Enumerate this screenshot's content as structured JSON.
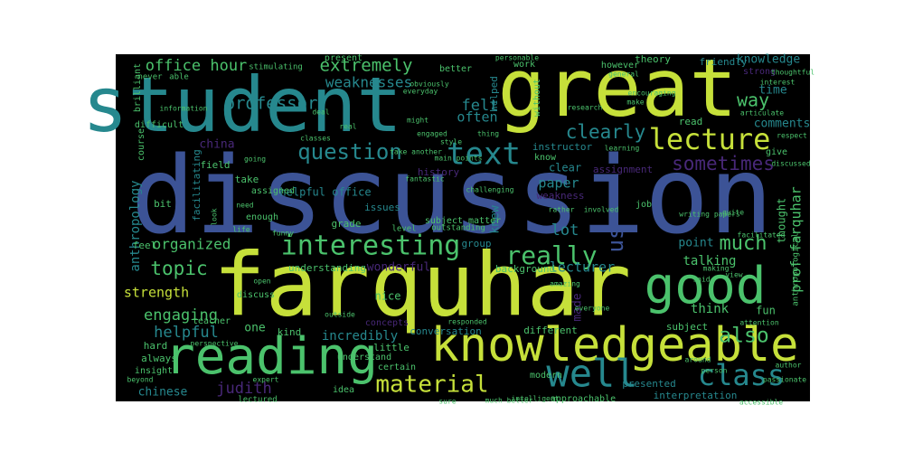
{
  "colors": {
    "background": "#000000",
    "yellow_green": "#c6e03a",
    "green": "#4bc26c",
    "teal": "#26888e",
    "blue": "#3c5396",
    "purple": "#482878",
    "dark_purple": "#3b1f62"
  },
  "words": [
    {
      "text": "discussion",
      "color": "blue"
    },
    {
      "text": "farquhar",
      "color": "yellow_green"
    },
    {
      "text": "student",
      "color": "teal"
    },
    {
      "text": "great",
      "color": "yellow_green"
    },
    {
      "text": "knowledgeable",
      "color": "yellow_green"
    },
    {
      "text": "good",
      "color": "green"
    },
    {
      "text": "reading",
      "color": "green"
    },
    {
      "text": "interesting",
      "color": "green"
    },
    {
      "text": "lecture",
      "color": "yellow_green"
    },
    {
      "text": "text",
      "color": "teal"
    },
    {
      "text": "question",
      "color": "teal"
    },
    {
      "text": "well",
      "color": "teal"
    },
    {
      "text": "class",
      "color": "teal"
    },
    {
      "text": "really",
      "color": "green"
    },
    {
      "text": "material",
      "color": "yellow_green"
    },
    {
      "text": "extremely",
      "color": "green"
    },
    {
      "text": "professor",
      "color": "teal"
    },
    {
      "text": "sometimes",
      "color": "purple"
    },
    {
      "text": "clearly",
      "color": "teal"
    },
    {
      "text": "office hour",
      "color": "green"
    },
    {
      "text": "topic",
      "color": "green"
    },
    {
      "text": "engaging",
      "color": "green"
    },
    {
      "text": "helpful",
      "color": "teal"
    },
    {
      "text": "also",
      "color": "green"
    },
    {
      "text": "much",
      "color": "green"
    },
    {
      "text": "us",
      "color": "blue"
    },
    {
      "text": "lot",
      "color": "teal"
    },
    {
      "text": "way",
      "color": "green"
    },
    {
      "text": "organized",
      "color": "green"
    },
    {
      "text": "felt",
      "color": "teal"
    },
    {
      "text": "often",
      "color": "teal"
    },
    {
      "text": "weaknesses",
      "color": "teal"
    },
    {
      "text": "strength",
      "color": "yellow_green"
    },
    {
      "text": "judith",
      "color": "purple"
    },
    {
      "text": "chinese",
      "color": "teal"
    },
    {
      "text": "anthropology",
      "color": "teal"
    },
    {
      "text": "prof farquhar",
      "color": "green"
    },
    {
      "text": "paper",
      "color": "teal"
    },
    {
      "text": "lecturer",
      "color": "teal"
    },
    {
      "text": "think",
      "color": "green"
    },
    {
      "text": "incredibly",
      "color": "teal"
    },
    {
      "text": "point",
      "color": "teal"
    },
    {
      "text": "talking",
      "color": "green"
    },
    {
      "text": "time",
      "color": "teal"
    },
    {
      "text": "comments",
      "color": "teal"
    },
    {
      "text": "knowledge",
      "color": "teal"
    },
    {
      "text": "china",
      "color": "purple"
    },
    {
      "text": "knew",
      "color": "teal"
    },
    {
      "text": "made",
      "color": "purple"
    },
    {
      "text": "one",
      "color": "green"
    },
    {
      "text": "group",
      "color": "teal"
    },
    {
      "text": "wonderful",
      "color": "purple"
    },
    {
      "text": "facilitating",
      "color": "teal"
    },
    {
      "text": "helpful office",
      "color": "teal"
    },
    {
      "text": "grade",
      "color": "green"
    },
    {
      "text": "conversation",
      "color": "teal"
    },
    {
      "text": "different",
      "color": "green"
    },
    {
      "text": "presented",
      "color": "teal"
    },
    {
      "text": "interpretation",
      "color": "teal"
    },
    {
      "text": "thought",
      "color": "green"
    },
    {
      "text": "clear",
      "color": "teal"
    },
    {
      "text": "read",
      "color": "green"
    },
    {
      "text": "friendly",
      "color": "teal"
    },
    {
      "text": "theory",
      "color": "green"
    },
    {
      "text": "work",
      "color": "green"
    },
    {
      "text": "helped",
      "color": "teal"
    },
    {
      "text": "history",
      "color": "purple"
    },
    {
      "text": "instructor",
      "color": "teal"
    },
    {
      "text": "assignment",
      "color": "purple"
    },
    {
      "text": "weakness",
      "color": "purple"
    },
    {
      "text": "understanding",
      "color": "green"
    },
    {
      "text": "background",
      "color": "green"
    },
    {
      "text": "nice",
      "color": "green"
    },
    {
      "text": "fun",
      "color": "green"
    },
    {
      "text": "issues",
      "color": "teal"
    },
    {
      "text": "field",
      "color": "green"
    },
    {
      "text": "take",
      "color": "green"
    },
    {
      "text": "bit",
      "color": "green"
    },
    {
      "text": "feel",
      "color": "green"
    },
    {
      "text": "hard",
      "color": "green"
    },
    {
      "text": "always",
      "color": "green"
    },
    {
      "text": "kind",
      "color": "green"
    },
    {
      "text": "little",
      "color": "green"
    },
    {
      "text": "idea",
      "color": "green"
    },
    {
      "text": "subject",
      "color": "green"
    },
    {
      "text": "approachable",
      "color": "green"
    },
    {
      "text": "give",
      "color": "green"
    },
    {
      "text": "job",
      "color": "green"
    },
    {
      "text": "present",
      "color": "green"
    },
    {
      "text": "better",
      "color": "green"
    },
    {
      "text": "course",
      "color": "green"
    },
    {
      "text": "brilliant",
      "color": "green"
    },
    {
      "text": "subject matter",
      "color": "green"
    },
    {
      "text": "insight",
      "color": "green"
    },
    {
      "text": "teacher",
      "color": "green"
    },
    {
      "text": "assigned",
      "color": "green"
    },
    {
      "text": "discuss",
      "color": "green"
    },
    {
      "text": "certain",
      "color": "green"
    },
    {
      "text": "modern",
      "color": "green"
    },
    {
      "text": "understand",
      "color": "green"
    },
    {
      "text": "lectured",
      "color": "green"
    },
    {
      "text": "anthropological",
      "color": "green"
    },
    {
      "text": "difficult",
      "color": "green"
    },
    {
      "text": "enough",
      "color": "green"
    },
    {
      "text": "without",
      "color": "green"
    },
    {
      "text": "however",
      "color": "green"
    },
    {
      "text": "never",
      "color": "green"
    },
    {
      "text": "able",
      "color": "green"
    },
    {
      "text": "stimulating",
      "color": "green"
    },
    {
      "text": "know",
      "color": "green"
    },
    {
      "text": "strong",
      "color": "purple"
    },
    {
      "text": "level",
      "color": "green"
    },
    {
      "text": "outstanding",
      "color": "green"
    },
    {
      "text": "general",
      "color": "green"
    },
    {
      "text": "interest",
      "color": "green"
    },
    {
      "text": "engaged",
      "color": "green"
    },
    {
      "text": "personable",
      "color": "green"
    },
    {
      "text": "encouraging",
      "color": "green"
    },
    {
      "text": "thoughtful",
      "color": "green"
    },
    {
      "text": "writing papers",
      "color": "green"
    },
    {
      "text": "respect",
      "color": "green"
    },
    {
      "text": "open",
      "color": "green"
    },
    {
      "text": "outside",
      "color": "green"
    },
    {
      "text": "concepts",
      "color": "purple"
    },
    {
      "text": "funny",
      "color": "green"
    },
    {
      "text": "life",
      "color": "green"
    },
    {
      "text": "look",
      "color": "green"
    },
    {
      "text": "need",
      "color": "green"
    },
    {
      "text": "going",
      "color": "green"
    },
    {
      "text": "classes",
      "color": "green"
    },
    {
      "text": "might",
      "color": "green"
    },
    {
      "text": "make",
      "color": "green"
    },
    {
      "text": "making",
      "color": "green"
    },
    {
      "text": "quite",
      "color": "green"
    },
    {
      "text": "rather",
      "color": "green"
    },
    {
      "text": "amazing",
      "color": "green"
    },
    {
      "text": "fantastic",
      "color": "green"
    },
    {
      "text": "challenging",
      "color": "green"
    },
    {
      "text": "around",
      "color": "green"
    },
    {
      "text": "person",
      "color": "green"
    },
    {
      "text": "beyond",
      "color": "green"
    },
    {
      "text": "expert",
      "color": "green"
    },
    {
      "text": "passionate",
      "color": "green"
    },
    {
      "text": "author",
      "color": "green"
    },
    {
      "text": "perspective",
      "color": "green"
    },
    {
      "text": "everyone",
      "color": "green"
    },
    {
      "text": "facilitated",
      "color": "green"
    },
    {
      "text": "responded",
      "color": "green"
    },
    {
      "text": "information",
      "color": "green"
    },
    {
      "text": "deal",
      "color": "green"
    },
    {
      "text": "real",
      "color": "green"
    },
    {
      "text": "style",
      "color": "green"
    },
    {
      "text": "main points",
      "color": "green"
    },
    {
      "text": "take another",
      "color": "green"
    },
    {
      "text": "thing",
      "color": "green"
    },
    {
      "text": "said",
      "color": "green"
    },
    {
      "text": "view",
      "color": "green"
    },
    {
      "text": "sure",
      "color": "green"
    },
    {
      "text": "much better",
      "color": "green"
    },
    {
      "text": "intelligent",
      "color": "green"
    },
    {
      "text": "accessible",
      "color": "green"
    },
    {
      "text": "articulate",
      "color": "green"
    },
    {
      "text": "discussed",
      "color": "green"
    },
    {
      "text": "obviously",
      "color": "green"
    },
    {
      "text": "everyday",
      "color": "green"
    },
    {
      "text": "attention",
      "color": "green"
    },
    {
      "text": "involved",
      "color": "green"
    },
    {
      "text": "research",
      "color": "green"
    },
    {
      "text": "learning",
      "color": "green"
    },
    {
      "text": "prof",
      "color": "green"
    },
    {
      "text": "feedback",
      "color": "green"
    }
  ]
}
